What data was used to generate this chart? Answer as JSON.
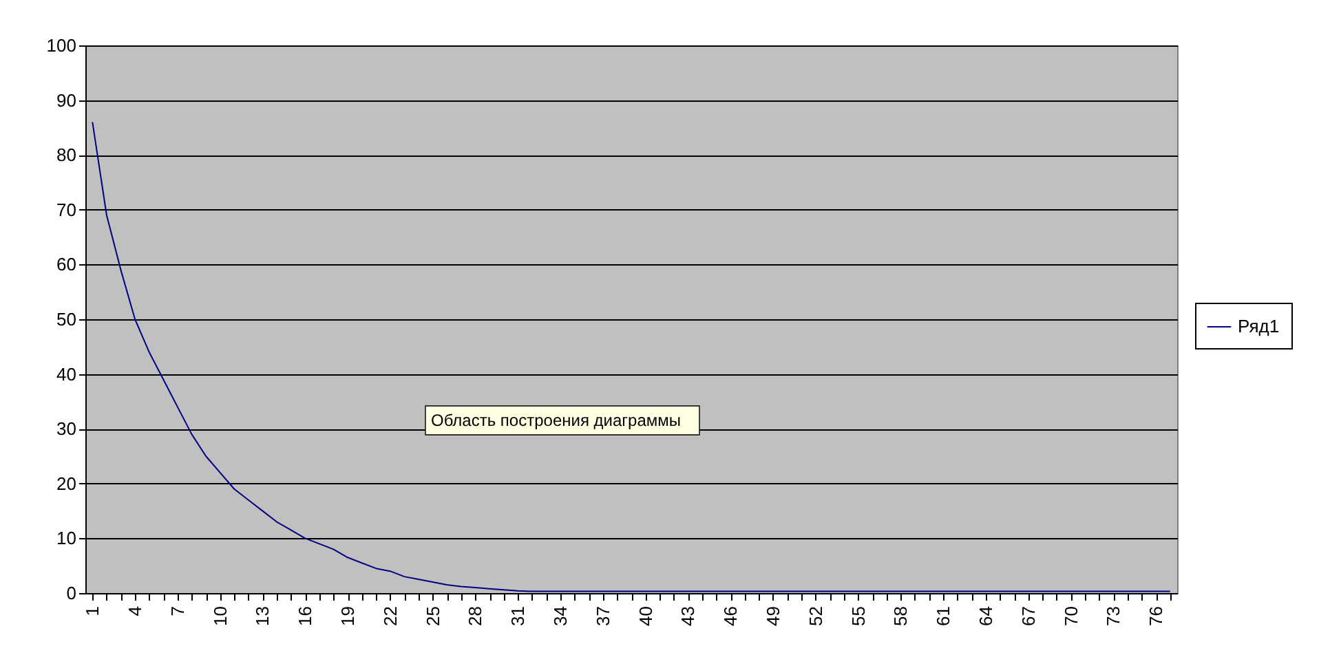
{
  "chart_data": {
    "type": "line",
    "categories": [
      "1",
      null,
      null,
      "4",
      null,
      null,
      "7",
      null,
      null,
      "10",
      null,
      null,
      "13",
      null,
      null,
      "16",
      null,
      null,
      "19",
      null,
      null,
      "22",
      null,
      null,
      "25",
      null,
      null,
      "28",
      null,
      null,
      "31",
      null,
      null,
      "34",
      null,
      null,
      "37",
      null,
      null,
      "40",
      null,
      null,
      "43",
      null,
      null,
      "46",
      null,
      null,
      "49",
      null,
      null,
      "52",
      null,
      null,
      "55",
      null,
      null,
      "58",
      null,
      null,
      "61",
      null,
      null,
      "64",
      null,
      null,
      "67",
      null,
      null,
      "70",
      null,
      null,
      "73",
      null,
      null,
      "76",
      null
    ],
    "series": [
      {
        "name": "Ряд1",
        "color": "#000080",
        "values": [
          86,
          69,
          59,
          50,
          44,
          39,
          34,
          29,
          25,
          22,
          19,
          17,
          15,
          13,
          11.5,
          10,
          9,
          8,
          6.5,
          5.5,
          4.5,
          4,
          3,
          2.5,
          2,
          1.5,
          1.2,
          1,
          0.8,
          0.6,
          0.4,
          0.3,
          0.3,
          0.3,
          0.3,
          0.3,
          0.3,
          0.3,
          0.3,
          0.3,
          0.3,
          0.3,
          0.3,
          0.3,
          0.3,
          0.3,
          0.3,
          0.3,
          0.3,
          0.3,
          0.3,
          0.3,
          0.3,
          0.3,
          0.3,
          0.3,
          0.3,
          0.3,
          0.3,
          0.3,
          0.3,
          0.3,
          0.3,
          0.3,
          0.3,
          0.3,
          0.3,
          0.3,
          0.3,
          0.3,
          0.3,
          0.3,
          0.3,
          0.3,
          0.3,
          0.3,
          0.3
        ]
      }
    ],
    "ylim": [
      0,
      100
    ],
    "yticks": [
      0,
      10,
      20,
      30,
      40,
      50,
      60,
      70,
      80,
      90,
      100
    ],
    "grid": "y",
    "legend": "right",
    "marker": "none",
    "line_style": "solid",
    "annotations": [
      "Область построения диаграммы"
    ]
  }
}
